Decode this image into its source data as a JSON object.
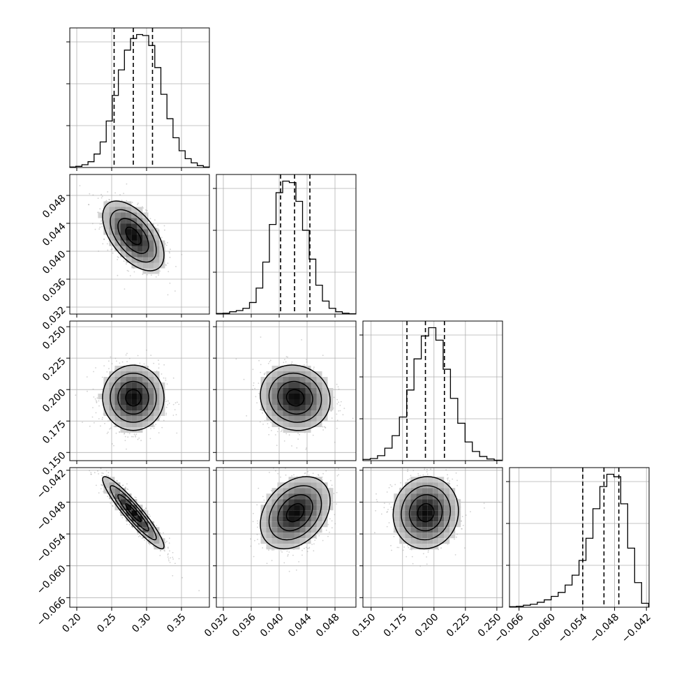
{
  "chart_data": {
    "type": "corner",
    "parameters": [
      {
        "name": "",
        "range": [
          0.19,
          0.39
        ],
        "ticks": [
          0.2,
          0.25,
          0.3,
          0.35
        ],
        "tick_labels": [
          "0.20",
          "0.25",
          "0.30",
          "0.35"
        ]
      },
      {
        "name": "",
        "range": [
          0.031,
          0.051
        ],
        "ticks": [
          0.032,
          0.036,
          0.04,
          0.044,
          0.048
        ],
        "tick_labels": [
          "0.032",
          "0.036",
          "0.040",
          "0.044",
          "0.048"
        ]
      },
      {
        "name": "",
        "range": [
          0.1435,
          0.2545
        ],
        "ticks": [
          0.15,
          0.175,
          0.2,
          0.225,
          0.25
        ],
        "tick_labels": [
          "0.150",
          "0.175",
          "0.200",
          "0.225",
          "0.250"
        ]
      },
      {
        "name": "",
        "range": [
          -0.0678,
          -0.0415
        ],
        "ticks": [
          -0.066,
          -0.06,
          -0.054,
          -0.048,
          -0.042
        ],
        "tick_labels": [
          "−0.066",
          "−0.060",
          "−0.054",
          "−0.048",
          "−0.042"
        ]
      }
    ],
    "histograms": [
      {
        "param": 0,
        "counts": [
          2,
          5,
          12,
          25,
          58,
          110,
          200,
          310,
          420,
          505,
          555,
          572,
          568,
          525,
          430,
          315,
          210,
          128,
          72,
          38,
          20,
          8,
          2
        ],
        "bin_edges_start": 0.19,
        "bin_width": 0.0087,
        "quantiles": [
          0.2535,
          0.281,
          0.3085
        ]
      },
      {
        "param": 1,
        "counts": [
          2,
          3,
          8,
          12,
          20,
          40,
          90,
          180,
          310,
          420,
          460,
          455,
          390,
          290,
          190,
          100,
          45,
          20,
          8,
          3,
          1
        ],
        "bin_edges_start": 0.031,
        "bin_width": 0.00095,
        "quantiles": [
          0.0402,
          0.0422,
          0.0444
        ]
      },
      {
        "param": 2,
        "counts": [
          3,
          5,
          12,
          30,
          60,
          105,
          170,
          245,
          300,
          320,
          290,
          220,
          150,
          90,
          45,
          22,
          10,
          4,
          1
        ],
        "bin_edges_start": 0.1435,
        "bin_width": 0.0058,
        "quantiles": [
          0.1785,
          0.1932,
          0.2083
        ]
      },
      {
        "param": 3,
        "counts": [
          1,
          2,
          4,
          6,
          10,
          15,
          22,
          30,
          45,
          65,
          95,
          140,
          200,
          245,
          270,
          265,
          210,
          120,
          50,
          8
        ],
        "bin_edges_start": -0.0678,
        "bin_width": 0.00131,
        "quantiles": [
          -0.054,
          -0.05,
          -0.0472
        ]
      }
    ],
    "pairs": [
      {
        "x": 0,
        "y": 1,
        "mean": [
          0.281,
          0.0422
        ],
        "std": [
          0.022,
          0.0025
        ],
        "rho": -0.55
      },
      {
        "x": 0,
        "y": 2,
        "mean": [
          0.281,
          0.1935
        ],
        "std": [
          0.022,
          0.013
        ],
        "rho": 0.0
      },
      {
        "x": 1,
        "y": 2,
        "mean": [
          0.0423,
          0.1935
        ],
        "std": [
          0.0025,
          0.013
        ],
        "rho": -0.08
      },
      {
        "x": 0,
        "y": 3,
        "mean": [
          0.281,
          -0.05
        ],
        "std": [
          0.022,
          0.0034
        ],
        "rho": -0.93
      },
      {
        "x": 1,
        "y": 3,
        "mean": [
          0.0423,
          -0.05
        ],
        "std": [
          0.0025,
          0.0034
        ],
        "rho": 0.32
      },
      {
        "x": 2,
        "y": 3,
        "mean": [
          0.1935,
          -0.05
        ],
        "std": [
          0.013,
          0.0034
        ],
        "rho": 0.05
      }
    ],
    "contour_levels_sigma": [
      0.5,
      1.0,
      1.5,
      2.0
    ],
    "grid": true,
    "colors": {
      "line": "#000000",
      "grid": "#b0b0b0",
      "points": "#999999"
    }
  }
}
